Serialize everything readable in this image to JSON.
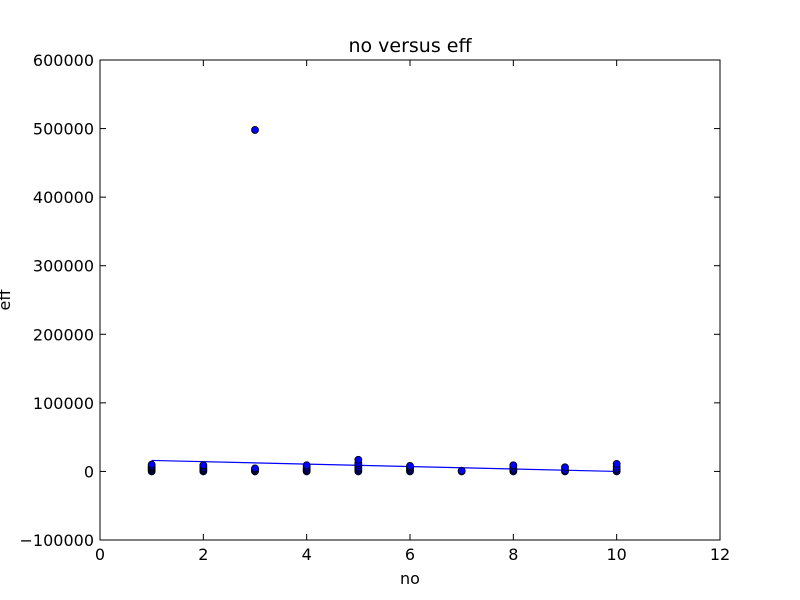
{
  "chart_data": {
    "type": "scatter",
    "title": "no versus eff",
    "xlabel": "no",
    "ylabel": "eff",
    "xlim": [
      0,
      12
    ],
    "ylim": [
      -100000,
      600000
    ],
    "xticks": [
      0,
      2,
      4,
      6,
      8,
      10,
      12
    ],
    "yticks": [
      -100000,
      0,
      100000,
      200000,
      300000,
      400000,
      500000,
      600000
    ],
    "xtick_labels": [
      "0",
      "2",
      "4",
      "6",
      "8",
      "10",
      "12"
    ],
    "ytick_labels": [
      "−100000",
      "0",
      "100000",
      "200000",
      "300000",
      "400000",
      "500000",
      "600000"
    ],
    "grid": false,
    "colors": {
      "points": "#0000ff",
      "line": "#0000ff",
      "axes": "#000000"
    },
    "series": [
      {
        "type": "scatter",
        "points": [
          [
            1,
            0
          ],
          [
            1,
            1500
          ],
          [
            1,
            3000
          ],
          [
            1,
            4500
          ],
          [
            1,
            6000
          ],
          [
            1,
            8000
          ],
          [
            1,
            10000
          ],
          [
            2,
            0
          ],
          [
            2,
            1500
          ],
          [
            2,
            3000
          ],
          [
            2,
            5000
          ],
          [
            2,
            7000
          ],
          [
            2,
            9000
          ],
          [
            3,
            0
          ],
          [
            3,
            1500
          ],
          [
            3,
            3000
          ],
          [
            3,
            4500
          ],
          [
            3,
            498000
          ],
          [
            4,
            0
          ],
          [
            4,
            1500
          ],
          [
            4,
            3000
          ],
          [
            4,
            5000
          ],
          [
            4,
            7000
          ],
          [
            4,
            9000
          ],
          [
            5,
            0
          ],
          [
            5,
            2000
          ],
          [
            5,
            4000
          ],
          [
            5,
            6000
          ],
          [
            5,
            9000
          ],
          [
            5,
            12000
          ],
          [
            5,
            17000
          ],
          [
            6,
            0
          ],
          [
            6,
            2000
          ],
          [
            6,
            4000
          ],
          [
            6,
            6000
          ],
          [
            6,
            8000
          ],
          [
            7,
            0
          ],
          [
            7,
            1000
          ],
          [
            8,
            0
          ],
          [
            8,
            2000
          ],
          [
            8,
            4000
          ],
          [
            8,
            7000
          ],
          [
            8,
            9000
          ],
          [
            9,
            0
          ],
          [
            9,
            2000
          ],
          [
            9,
            6000
          ],
          [
            10,
            0
          ],
          [
            10,
            2000
          ],
          [
            10,
            4000
          ],
          [
            10,
            7000
          ],
          [
            10,
            11000
          ]
        ]
      },
      {
        "type": "line",
        "x": [
          1,
          10
        ],
        "y": [
          16000,
          0
        ]
      }
    ]
  }
}
